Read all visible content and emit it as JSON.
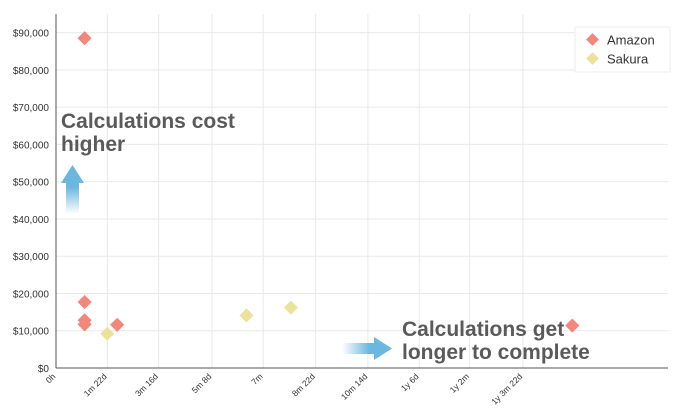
{
  "chart_data": {
    "type": "scatter",
    "x_unit": "days",
    "xlim": [
      0,
      620
    ],
    "ylim": [
      0,
      95000
    ],
    "grid": true,
    "legend_position": "top-right",
    "y_ticks": [
      {
        "value": 0,
        "label": "$0"
      },
      {
        "value": 10000,
        "label": "$10,000"
      },
      {
        "value": 20000,
        "label": "$20,000"
      },
      {
        "value": 30000,
        "label": "$30,000"
      },
      {
        "value": 40000,
        "label": "$40,000"
      },
      {
        "value": 50000,
        "label": "$50,000"
      },
      {
        "value": 60000,
        "label": "$60,000"
      },
      {
        "value": 70000,
        "label": "$70,000"
      },
      {
        "value": 80000,
        "label": "$80,000"
      },
      {
        "value": 90000,
        "label": "$90,000"
      }
    ],
    "x_ticks": [
      {
        "value": 0,
        "label": "0h"
      },
      {
        "value": 52,
        "label": "1m 22d"
      },
      {
        "value": 104,
        "label": "3m 16d"
      },
      {
        "value": 158,
        "label": "5m 8d"
      },
      {
        "value": 210,
        "label": "7m"
      },
      {
        "value": 263,
        "label": "8m 22d"
      },
      {
        "value": 316,
        "label": "10m 14d"
      },
      {
        "value": 368,
        "label": "1y 6d"
      },
      {
        "value": 419,
        "label": "1y 2m"
      },
      {
        "value": 473,
        "label": "1y 3m 22d"
      }
    ],
    "series": [
      {
        "name": "Amazon",
        "color": "#f4877c",
        "points": [
          {
            "x": 29,
            "y": 88500
          },
          {
            "x": 29,
            "y": 17700
          },
          {
            "x": 29,
            "y": 12800
          },
          {
            "x": 29,
            "y": 11700
          },
          {
            "x": 62,
            "y": 11600
          },
          {
            "x": 523,
            "y": 11400
          }
        ]
      },
      {
        "name": "Sakura",
        "color": "#ede29c",
        "points": [
          {
            "x": 52,
            "y": 9200
          },
          {
            "x": 193,
            "y": 14100
          },
          {
            "x": 238,
            "y": 16200
          }
        ]
      }
    ]
  },
  "annotations": {
    "cost": {
      "line1": "Calculations cost",
      "line2": "higher"
    },
    "time": {
      "line1": "Calculations get",
      "line2": "longer to complete"
    }
  },
  "colors": {
    "grid": "#e9e9e9",
    "axis": "#555555",
    "arrow": "#6ab7df"
  }
}
